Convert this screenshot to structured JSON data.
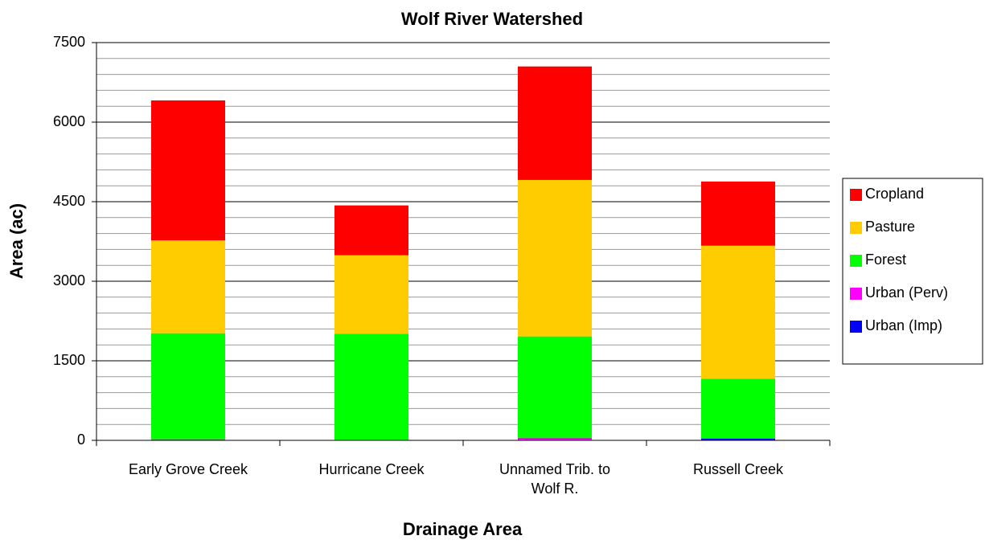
{
  "chart_data": {
    "type": "stacked_bar",
    "title": "Wolf River Watershed",
    "x_label": "Drainage Area",
    "y_label": "Area (ac)",
    "categories": [
      "Early Grove Creek",
      "Hurricane Creek",
      "Unnamed Trib. to Wolf R.",
      "Russell Creek"
    ],
    "series": [
      {
        "name": "Urban (Imp)",
        "color": "#0000ff",
        "values": [
          10,
          5,
          10,
          30
        ]
      },
      {
        "name": "Urban (Perv)",
        "color": "#ff00ff",
        "values": [
          10,
          5,
          40,
          10
        ]
      },
      {
        "name": "Forest",
        "color": "#00ff00",
        "values": [
          2000,
          2000,
          1910,
          1120
        ]
      },
      {
        "name": "Pasture",
        "color": "#ffcc00",
        "values": [
          1750,
          1480,
          2950,
          2510
        ]
      },
      {
        "name": "Cropland",
        "color": "#ff0000",
        "values": [
          2640,
          940,
          2140,
          1210
        ]
      }
    ],
    "ylim": [
      0,
      7500
    ],
    "yticks": [
      0,
      1500,
      3000,
      4500,
      6000,
      7500
    ],
    "minor_yticks": [
      300,
      600,
      900,
      1200,
      1800,
      2100,
      2400,
      2700,
      3300,
      3600,
      3900,
      4200,
      4800,
      5100,
      5400,
      5700,
      6300,
      6600,
      6900,
      7200
    ],
    "grid": true,
    "legend": "right"
  }
}
